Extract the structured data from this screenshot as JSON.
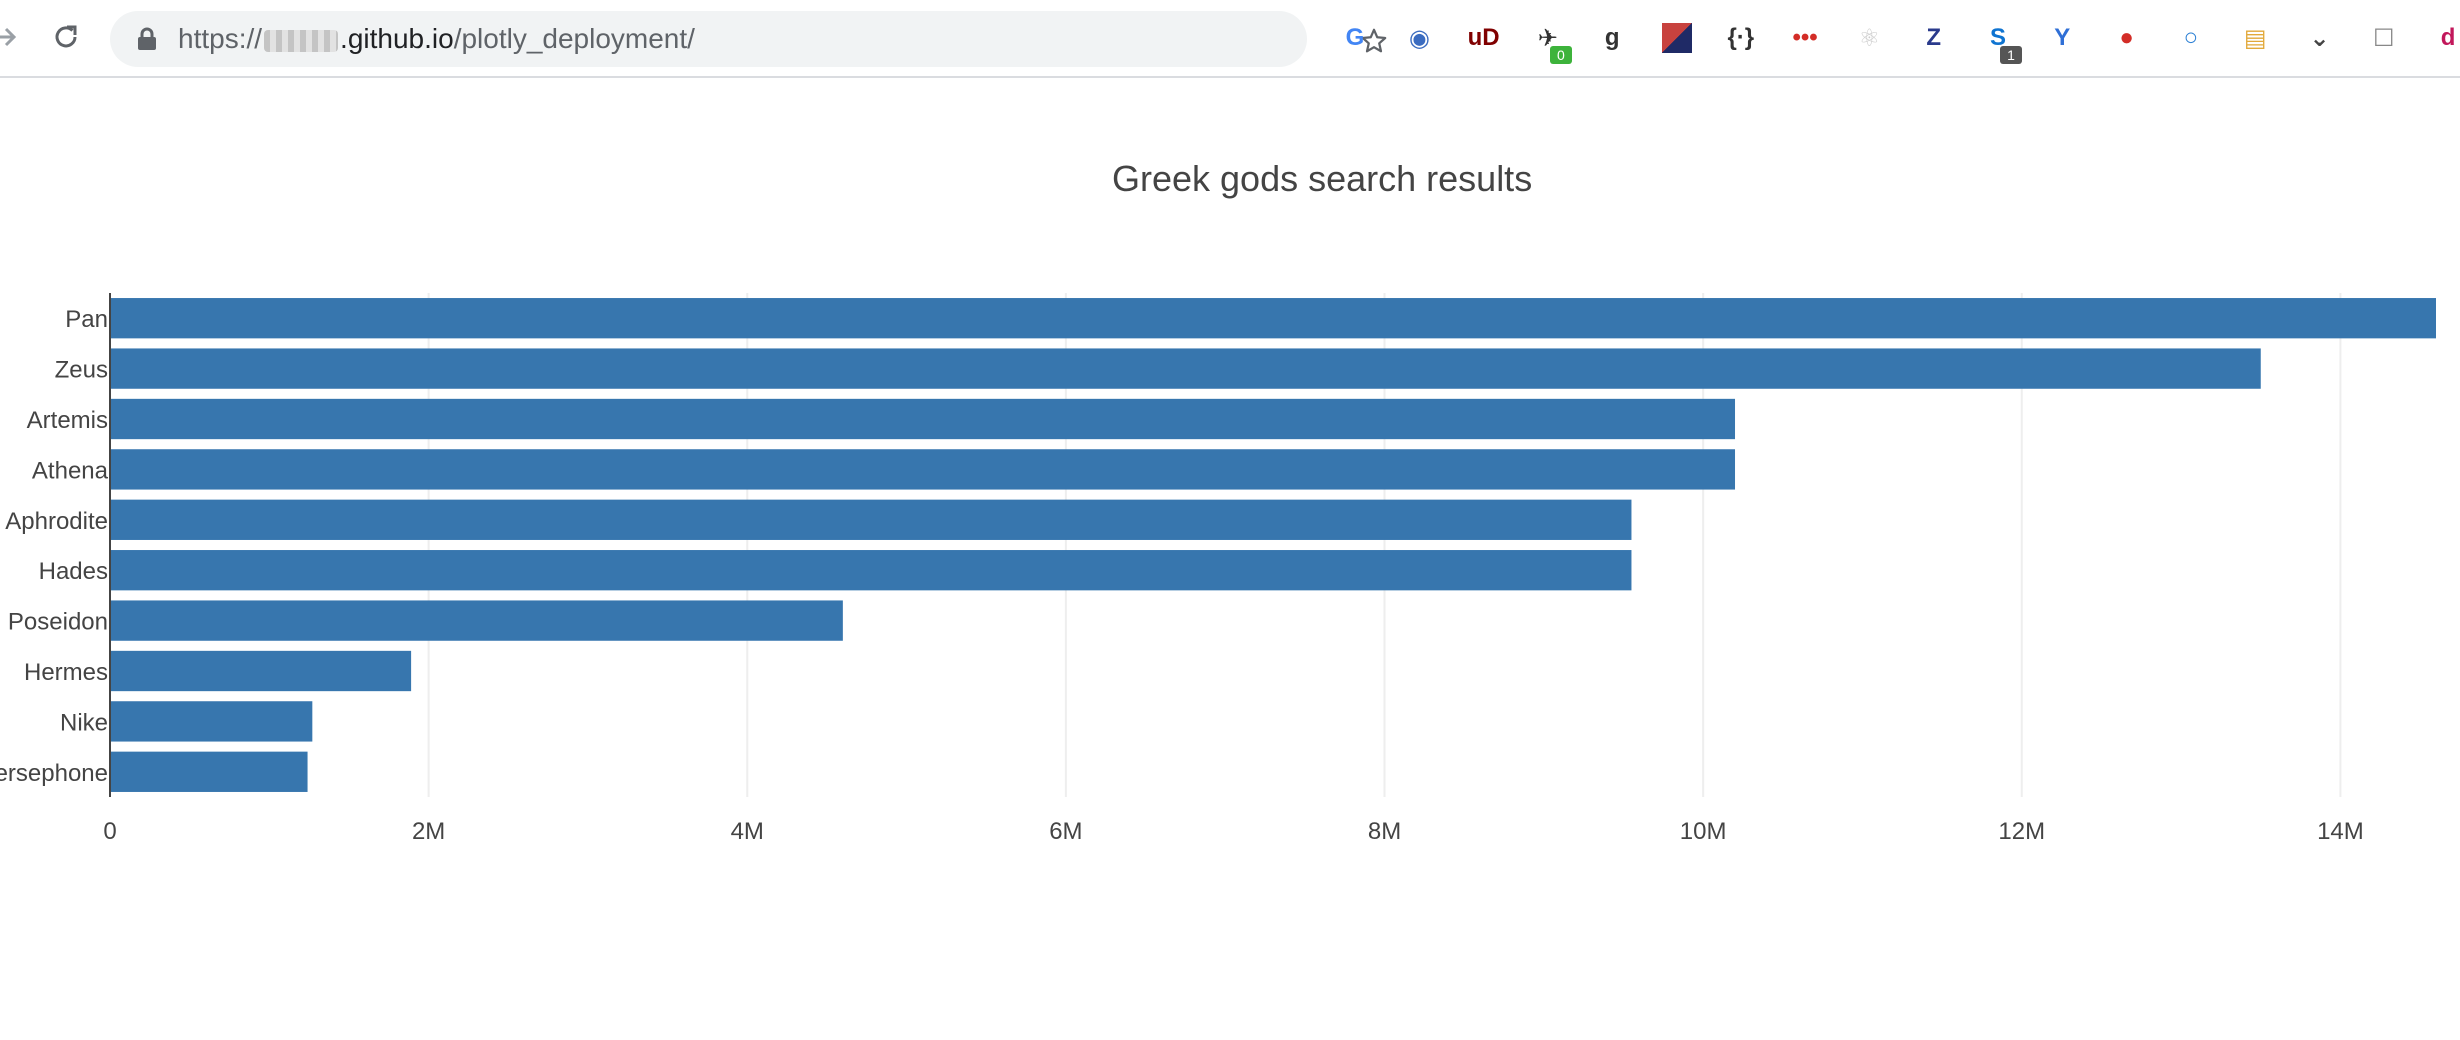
{
  "browser": {
    "url": {
      "scheme": "https://",
      "host_suffix": ".github.io",
      "path": "/plotly_deployment/"
    },
    "extensions": [
      {
        "name": "google-translate-icon",
        "color": "#4285f4",
        "glyph": "G"
      },
      {
        "name": "globe-icon",
        "color": "#3b6cc0",
        "glyph": "◉"
      },
      {
        "name": "ublock-icon",
        "color": "#800000",
        "glyph": "uD"
      },
      {
        "name": "ufo-icon",
        "color": "#333333",
        "glyph": "✈",
        "badge": "0",
        "badge_color": "#3db33b"
      },
      {
        "name": "goodreads-icon",
        "color": "#333333",
        "glyph": "g"
      },
      {
        "name": "flag-icon",
        "color": "#c8423e",
        "glyph": ""
      },
      {
        "name": "json-viewer-icon",
        "color": "#333333",
        "glyph": "{·}"
      },
      {
        "name": "lastpass-icon",
        "color": "#d32d27",
        "glyph": "•••"
      },
      {
        "name": "react-icon",
        "color": "#cccccc",
        "glyph": "⚛"
      },
      {
        "name": "zotero-icon",
        "color": "#2a3a8c",
        "glyph": "Z"
      },
      {
        "name": "skype-icon",
        "color": "#0f74d1",
        "glyph": "S",
        "badge": "1",
        "badge_color": "#555555"
      },
      {
        "name": "vue-icon",
        "color": "#2f6fd6",
        "glyph": "Y"
      },
      {
        "name": "record-icon",
        "color": "#d32d27",
        "glyph": "●"
      },
      {
        "name": "circle-icon",
        "color": "#2a7fd4",
        "glyph": "○"
      },
      {
        "name": "clipboard-icon",
        "color": "#e2a93b",
        "glyph": "▤"
      },
      {
        "name": "pocket-icon",
        "color": "#444444",
        "glyph": "⌄"
      },
      {
        "name": "inbox-icon",
        "color": "#888888",
        "glyph": "☐"
      },
      {
        "name": "dapp-icon",
        "color": "#c2185b",
        "glyph": "d"
      }
    ]
  },
  "chart_data": {
    "type": "bar",
    "orientation": "horizontal",
    "title": "Greek gods search results",
    "categories": [
      "Pan",
      "Zeus",
      "Artemis",
      "Athena",
      "Aphrodite",
      "Hades",
      "Poseidon",
      "Hermes",
      "Nike",
      "Persephone"
    ],
    "values": [
      14600000,
      13500000,
      10200000,
      10200000,
      9550000,
      9550000,
      4600000,
      1890000,
      1270000,
      1240000
    ],
    "xlabel": "",
    "ylabel": "",
    "xlim": [
      0,
      14600000
    ],
    "x_ticks": [
      0,
      2000000,
      4000000,
      6000000,
      8000000,
      10000000,
      12000000,
      14000000
    ],
    "x_tick_labels": [
      "0",
      "2M",
      "4M",
      "6M",
      "8M",
      "10M",
      "12M",
      "14M"
    ],
    "bar_color": "#3776ae",
    "grid": true,
    "legend": false
  }
}
